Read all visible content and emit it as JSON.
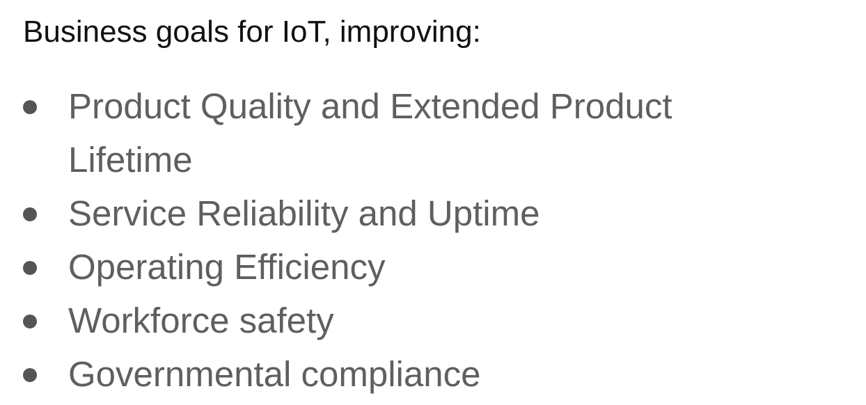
{
  "slide": {
    "heading": "Business goals for IoT, improving:",
    "items": [
      "Product Quality and Extended Product Lifetime",
      "Service Reliability and Uptime",
      "Operating Efficiency",
      "Workforce safety",
      "Governmental compliance"
    ]
  }
}
